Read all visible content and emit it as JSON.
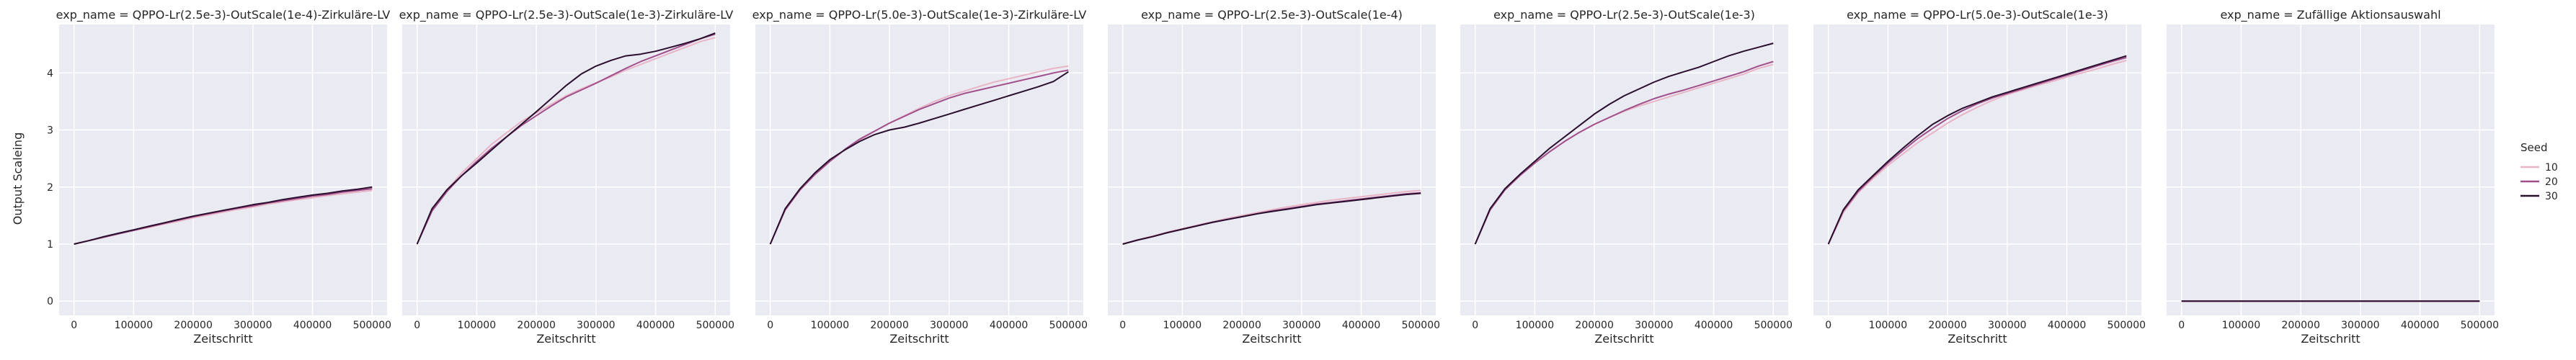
{
  "chart_data": {
    "type": "line",
    "facet_by": "exp_name",
    "xlabel": "Zeitschritt",
    "ylabel": "Output Scaleing",
    "xlim": [
      -25000,
      525000
    ],
    "ylim": [
      -0.25,
      4.85
    ],
    "xticks": [
      0,
      100000,
      200000,
      300000,
      400000,
      500000
    ],
    "yticks": [
      0,
      1,
      2,
      3,
      4
    ],
    "grid": true,
    "legend": {
      "title": "Seed",
      "placement": "right",
      "entries": [
        {
          "label": "10",
          "color": "#e8b5c7"
        },
        {
          "label": "20",
          "color": "#a04f8a"
        },
        {
          "label": "30",
          "color": "#2a0e2e"
        }
      ]
    },
    "x": [
      0,
      25000,
      50000,
      75000,
      100000,
      125000,
      150000,
      175000,
      200000,
      225000,
      250000,
      275000,
      300000,
      325000,
      350000,
      375000,
      400000,
      425000,
      450000,
      475000,
      500000
    ],
    "panels": [
      {
        "title": "exp_name = QPPO-Lr(2.5e-3)-OutScale(1e-4)-Zirkuläre-LV",
        "series": [
          {
            "name": "10",
            "values": [
              1.0,
              1.06,
              1.12,
              1.18,
              1.24,
              1.29,
              1.35,
              1.4,
              1.46,
              1.51,
              1.56,
              1.61,
              1.65,
              1.7,
              1.74,
              1.78,
              1.81,
              1.85,
              1.88,
              1.91,
              1.94
            ]
          },
          {
            "name": "20",
            "values": [
              1.0,
              1.06,
              1.12,
              1.18,
              1.24,
              1.3,
              1.36,
              1.42,
              1.48,
              1.53,
              1.58,
              1.63,
              1.67,
              1.72,
              1.76,
              1.8,
              1.84,
              1.87,
              1.91,
              1.94,
              1.97
            ]
          },
          {
            "name": "30",
            "values": [
              1.0,
              1.06,
              1.13,
              1.19,
              1.25,
              1.31,
              1.37,
              1.43,
              1.49,
              1.54,
              1.59,
              1.64,
              1.69,
              1.73,
              1.78,
              1.82,
              1.86,
              1.89,
              1.93,
              1.96,
              2.0
            ]
          }
        ]
      },
      {
        "title": "exp_name = QPPO-Lr(2.5e-3)-OutScale(1e-3)-Zirkuläre-LV",
        "series": [
          {
            "name": "10",
            "values": [
              1.0,
              1.6,
              1.95,
              2.25,
              2.5,
              2.75,
              2.95,
              3.15,
              3.3,
              3.45,
              3.6,
              3.72,
              3.83,
              3.93,
              4.05,
              4.15,
              4.25,
              4.35,
              4.45,
              4.55,
              4.62
            ]
          },
          {
            "name": "20",
            "values": [
              1.0,
              1.58,
              1.92,
              2.2,
              2.45,
              2.68,
              2.88,
              3.08,
              3.25,
              3.42,
              3.58,
              3.7,
              3.82,
              3.95,
              4.08,
              4.2,
              4.3,
              4.4,
              4.5,
              4.6,
              4.68
            ]
          },
          {
            "name": "30",
            "values": [
              1.0,
              1.62,
              1.95,
              2.2,
              2.42,
              2.65,
              2.88,
              3.1,
              3.32,
              3.55,
              3.78,
              3.98,
              4.12,
              4.22,
              4.3,
              4.33,
              4.38,
              4.45,
              4.52,
              4.6,
              4.7
            ]
          }
        ]
      },
      {
        "title": "exp_name = QPPO-Lr(5.0e-3)-OutScale(1e-3)-Zirkuläre-LV",
        "series": [
          {
            "name": "10",
            "values": [
              1.0,
              1.6,
              1.95,
              2.22,
              2.45,
              2.65,
              2.82,
              2.98,
              3.12,
              3.25,
              3.38,
              3.5,
              3.6,
              3.68,
              3.76,
              3.84,
              3.9,
              3.96,
              4.02,
              4.08,
              4.12
            ]
          },
          {
            "name": "20",
            "values": [
              1.0,
              1.6,
              1.95,
              2.22,
              2.45,
              2.66,
              2.84,
              2.98,
              3.12,
              3.24,
              3.36,
              3.46,
              3.56,
              3.64,
              3.7,
              3.76,
              3.82,
              3.88,
              3.94,
              4.0,
              4.05
            ]
          },
          {
            "name": "30",
            "values": [
              1.0,
              1.62,
              1.97,
              2.25,
              2.48,
              2.65,
              2.8,
              2.92,
              3.0,
              3.05,
              3.12,
              3.2,
              3.28,
              3.36,
              3.44,
              3.52,
              3.6,
              3.68,
              3.76,
              3.85,
              4.02
            ]
          }
        ]
      },
      {
        "title": "exp_name = QPPO-Lr(2.5e-3)-OutScale(1e-4)",
        "series": [
          {
            "name": "10",
            "values": [
              1.0,
              1.07,
              1.14,
              1.21,
              1.27,
              1.33,
              1.39,
              1.45,
              1.5,
              1.55,
              1.6,
              1.65,
              1.69,
              1.73,
              1.77,
              1.8,
              1.83,
              1.86,
              1.89,
              1.92,
              1.94
            ]
          },
          {
            "name": "20",
            "values": [
              1.0,
              1.07,
              1.13,
              1.2,
              1.26,
              1.32,
              1.38,
              1.43,
              1.48,
              1.53,
              1.58,
              1.62,
              1.66,
              1.7,
              1.73,
              1.76,
              1.79,
              1.82,
              1.85,
              1.88,
              1.9
            ]
          },
          {
            "name": "30",
            "values": [
              1.0,
              1.07,
              1.13,
              1.2,
              1.26,
              1.32,
              1.38,
              1.43,
              1.48,
              1.53,
              1.57,
              1.61,
              1.65,
              1.69,
              1.72,
              1.75,
              1.78,
              1.81,
              1.84,
              1.87,
              1.89
            ]
          }
        ]
      },
      {
        "title": "exp_name = QPPO-Lr(2.5e-3)-OutScale(1e-3)",
        "series": [
          {
            "name": "10",
            "values": [
              1.0,
              1.6,
              1.95,
              2.2,
              2.42,
              2.62,
              2.8,
              2.96,
              3.1,
              3.22,
              3.33,
              3.42,
              3.5,
              3.58,
              3.66,
              3.74,
              3.82,
              3.9,
              3.98,
              4.08,
              4.15
            ]
          },
          {
            "name": "20",
            "values": [
              1.0,
              1.6,
              1.95,
              2.2,
              2.42,
              2.62,
              2.8,
              2.96,
              3.1,
              3.22,
              3.34,
              3.45,
              3.55,
              3.63,
              3.7,
              3.78,
              3.86,
              3.94,
              4.02,
              4.12,
              4.2
            ]
          },
          {
            "name": "30",
            "values": [
              1.0,
              1.62,
              1.97,
              2.22,
              2.45,
              2.68,
              2.88,
              3.08,
              3.28,
              3.45,
              3.6,
              3.72,
              3.84,
              3.94,
              4.02,
              4.1,
              4.2,
              4.3,
              4.38,
              4.45,
              4.52
            ]
          }
        ]
      },
      {
        "title": "exp_name = QPPO-Lr(5.0e-3)-OutScale(1e-3)",
        "series": [
          {
            "name": "10",
            "values": [
              1.0,
              1.55,
              1.9,
              2.15,
              2.38,
              2.58,
              2.78,
              2.95,
              3.12,
              3.27,
              3.4,
              3.52,
              3.62,
              3.7,
              3.78,
              3.85,
              3.93,
              4.0,
              4.07,
              4.15,
              4.22
            ]
          },
          {
            "name": "20",
            "values": [
              1.0,
              1.58,
              1.92,
              2.18,
              2.42,
              2.64,
              2.85,
              3.03,
              3.2,
              3.34,
              3.46,
              3.56,
              3.64,
              3.72,
              3.8,
              3.88,
              3.96,
              4.04,
              4.12,
              4.2,
              4.27
            ]
          },
          {
            "name": "30",
            "values": [
              1.0,
              1.6,
              1.95,
              2.2,
              2.45,
              2.68,
              2.9,
              3.1,
              3.25,
              3.38,
              3.48,
              3.58,
              3.66,
              3.74,
              3.82,
              3.9,
              3.98,
              4.06,
              4.14,
              4.22,
              4.3
            ]
          }
        ]
      },
      {
        "title": "exp_name = Zufällige Aktionsauswahl",
        "series": [
          {
            "name": "10",
            "values": [
              0,
              0,
              0,
              0,
              0,
              0,
              0,
              0,
              0,
              0,
              0,
              0,
              0,
              0,
              0,
              0,
              0,
              0,
              0,
              0,
              0
            ]
          },
          {
            "name": "20",
            "values": [
              0,
              0,
              0,
              0,
              0,
              0,
              0,
              0,
              0,
              0,
              0,
              0,
              0,
              0,
              0,
              0,
              0,
              0,
              0,
              0,
              0
            ]
          },
          {
            "name": "30",
            "values": [
              0,
              0,
              0,
              0,
              0,
              0,
              0,
              0,
              0,
              0,
              0,
              0,
              0,
              0,
              0,
              0,
              0,
              0,
              0,
              0,
              0
            ]
          }
        ]
      }
    ]
  }
}
